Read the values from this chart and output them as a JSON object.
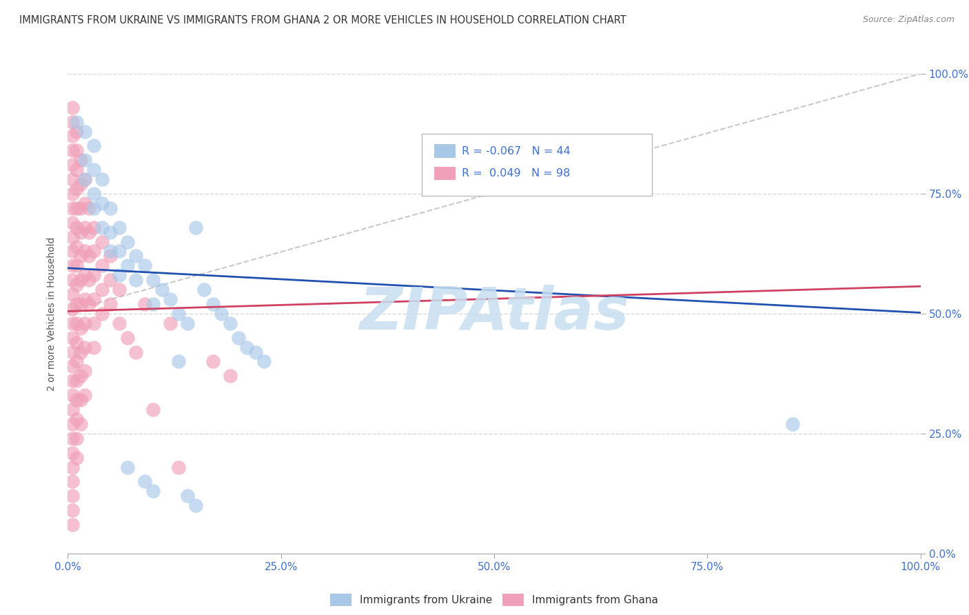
{
  "title": "IMMIGRANTS FROM UKRAINE VS IMMIGRANTS FROM GHANA 2 OR MORE VEHICLES IN HOUSEHOLD CORRELATION CHART",
  "source": "Source: ZipAtlas.com",
  "ylabel": "2 or more Vehicles in Household",
  "legend_label_ukraine": "Immigrants from Ukraine",
  "legend_label_ghana": "Immigrants from Ghana",
  "ukraine_R": -0.067,
  "ukraine_N": 44,
  "ghana_R": 0.049,
  "ghana_N": 98,
  "ukraine_color": "#a8c8e8",
  "ghana_color": "#f0a0b8",
  "ukraine_line_color": "#2050b0",
  "ghana_line_color": "#d04060",
  "diag_line_color": "#c8c8c8",
  "grid_color": "#d8d8d8",
  "background_color": "#ffffff",
  "watermark": "ZIPAtlas",
  "watermark_color": "#c8dff0",
  "tick_color": "#4070d0",
  "ylabel_color": "#555555",
  "xlim": [
    0,
    1.0
  ],
  "ylim": [
    0,
    1.0
  ],
  "x_ticks": [
    0,
    0.25,
    0.5,
    0.75,
    1.0
  ],
  "x_tick_labels": [
    "0.0%",
    "25.0%",
    "50.0%",
    "75.0%",
    "100.0%"
  ],
  "y_ticks": [
    0,
    0.25,
    0.5,
    0.75,
    1.0
  ],
  "y_tick_labels": [
    "0.0%",
    "25.0%",
    "50.0%",
    "75.0%",
    "100.0%"
  ],
  "ukraine_scatter": [
    [
      0.01,
      0.9
    ],
    [
      0.02,
      0.88
    ],
    [
      0.02,
      0.82
    ],
    [
      0.02,
      0.78
    ],
    [
      0.03,
      0.85
    ],
    [
      0.03,
      0.8
    ],
    [
      0.03,
      0.75
    ],
    [
      0.03,
      0.72
    ],
    [
      0.04,
      0.78
    ],
    [
      0.04,
      0.73
    ],
    [
      0.04,
      0.68
    ],
    [
      0.05,
      0.72
    ],
    [
      0.05,
      0.67
    ],
    [
      0.05,
      0.63
    ],
    [
      0.06,
      0.68
    ],
    [
      0.06,
      0.63
    ],
    [
      0.06,
      0.58
    ],
    [
      0.07,
      0.65
    ],
    [
      0.07,
      0.6
    ],
    [
      0.08,
      0.62
    ],
    [
      0.08,
      0.57
    ],
    [
      0.09,
      0.6
    ],
    [
      0.1,
      0.57
    ],
    [
      0.1,
      0.52
    ],
    [
      0.11,
      0.55
    ],
    [
      0.12,
      0.53
    ],
    [
      0.13,
      0.5
    ],
    [
      0.14,
      0.48
    ],
    [
      0.15,
      0.68
    ],
    [
      0.16,
      0.55
    ],
    [
      0.17,
      0.52
    ],
    [
      0.18,
      0.5
    ],
    [
      0.19,
      0.48
    ],
    [
      0.2,
      0.45
    ],
    [
      0.21,
      0.43
    ],
    [
      0.22,
      0.42
    ],
    [
      0.23,
      0.4
    ],
    [
      0.07,
      0.18
    ],
    [
      0.09,
      0.15
    ],
    [
      0.1,
      0.13
    ],
    [
      0.85,
      0.27
    ],
    [
      0.13,
      0.4
    ],
    [
      0.14,
      0.12
    ],
    [
      0.15,
      0.1
    ]
  ],
  "ghana_scatter": [
    [
      0.005,
      0.93
    ],
    [
      0.005,
      0.9
    ],
    [
      0.005,
      0.87
    ],
    [
      0.005,
      0.84
    ],
    [
      0.005,
      0.81
    ],
    [
      0.005,
      0.78
    ],
    [
      0.005,
      0.75
    ],
    [
      0.005,
      0.72
    ],
    [
      0.005,
      0.69
    ],
    [
      0.005,
      0.66
    ],
    [
      0.005,
      0.63
    ],
    [
      0.005,
      0.6
    ],
    [
      0.005,
      0.57
    ],
    [
      0.005,
      0.54
    ],
    [
      0.005,
      0.51
    ],
    [
      0.005,
      0.48
    ],
    [
      0.005,
      0.45
    ],
    [
      0.005,
      0.42
    ],
    [
      0.005,
      0.39
    ],
    [
      0.005,
      0.36
    ],
    [
      0.005,
      0.33
    ],
    [
      0.005,
      0.3
    ],
    [
      0.005,
      0.27
    ],
    [
      0.005,
      0.24
    ],
    [
      0.005,
      0.21
    ],
    [
      0.005,
      0.18
    ],
    [
      0.005,
      0.15
    ],
    [
      0.005,
      0.12
    ],
    [
      0.005,
      0.09
    ],
    [
      0.005,
      0.06
    ],
    [
      0.01,
      0.88
    ],
    [
      0.01,
      0.84
    ],
    [
      0.01,
      0.8
    ],
    [
      0.01,
      0.76
    ],
    [
      0.01,
      0.72
    ],
    [
      0.01,
      0.68
    ],
    [
      0.01,
      0.64
    ],
    [
      0.01,
      0.6
    ],
    [
      0.01,
      0.56
    ],
    [
      0.01,
      0.52
    ],
    [
      0.01,
      0.48
    ],
    [
      0.01,
      0.44
    ],
    [
      0.01,
      0.4
    ],
    [
      0.01,
      0.36
    ],
    [
      0.01,
      0.32
    ],
    [
      0.01,
      0.28
    ],
    [
      0.01,
      0.24
    ],
    [
      0.01,
      0.2
    ],
    [
      0.015,
      0.82
    ],
    [
      0.015,
      0.77
    ],
    [
      0.015,
      0.72
    ],
    [
      0.015,
      0.67
    ],
    [
      0.015,
      0.62
    ],
    [
      0.015,
      0.57
    ],
    [
      0.015,
      0.52
    ],
    [
      0.015,
      0.47
    ],
    [
      0.015,
      0.42
    ],
    [
      0.015,
      0.37
    ],
    [
      0.015,
      0.32
    ],
    [
      0.015,
      0.27
    ],
    [
      0.02,
      0.78
    ],
    [
      0.02,
      0.73
    ],
    [
      0.02,
      0.68
    ],
    [
      0.02,
      0.63
    ],
    [
      0.02,
      0.58
    ],
    [
      0.02,
      0.53
    ],
    [
      0.02,
      0.48
    ],
    [
      0.02,
      0.43
    ],
    [
      0.02,
      0.38
    ],
    [
      0.02,
      0.33
    ],
    [
      0.025,
      0.72
    ],
    [
      0.025,
      0.67
    ],
    [
      0.025,
      0.62
    ],
    [
      0.025,
      0.57
    ],
    [
      0.025,
      0.52
    ],
    [
      0.03,
      0.68
    ],
    [
      0.03,
      0.63
    ],
    [
      0.03,
      0.58
    ],
    [
      0.03,
      0.53
    ],
    [
      0.03,
      0.48
    ],
    [
      0.03,
      0.43
    ],
    [
      0.04,
      0.65
    ],
    [
      0.04,
      0.6
    ],
    [
      0.04,
      0.55
    ],
    [
      0.04,
      0.5
    ],
    [
      0.05,
      0.62
    ],
    [
      0.05,
      0.57
    ],
    [
      0.05,
      0.52
    ],
    [
      0.06,
      0.55
    ],
    [
      0.06,
      0.48
    ],
    [
      0.07,
      0.45
    ],
    [
      0.08,
      0.42
    ],
    [
      0.09,
      0.52
    ],
    [
      0.1,
      0.3
    ],
    [
      0.12,
      0.48
    ],
    [
      0.13,
      0.18
    ],
    [
      0.17,
      0.4
    ],
    [
      0.19,
      0.37
    ]
  ],
  "ukraine_line": [
    [
      0,
      0.595
    ],
    [
      1.0,
      0.502
    ]
  ],
  "ghana_line": [
    [
      0,
      0.505
    ],
    [
      1.0,
      0.557
    ]
  ],
  "diag_line": [
    [
      0,
      0.505
    ],
    [
      1.0,
      1.0
    ]
  ]
}
